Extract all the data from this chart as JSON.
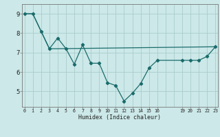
{
  "xlabel": "Humidex (Indice chaleur)",
  "bg_color": "#cce8e8",
  "grid_color": "#aacccc",
  "line_color": "#1a6b6b",
  "series1_x": [
    0,
    1,
    2,
    3,
    4,
    5,
    6,
    7,
    8,
    9,
    10,
    11,
    12,
    13,
    14,
    15,
    16,
    19,
    20,
    21,
    22,
    23
  ],
  "series1_y": [
    9.0,
    9.0,
    8.1,
    7.2,
    7.75,
    7.2,
    6.4,
    7.4,
    6.45,
    6.45,
    5.45,
    5.3,
    4.5,
    4.9,
    5.4,
    6.2,
    6.6,
    6.6,
    6.6,
    6.6,
    6.8,
    7.3
  ],
  "series2_x": [
    0,
    1,
    2,
    3,
    4,
    23
  ],
  "series2_y": [
    9.0,
    9.0,
    8.1,
    7.2,
    7.2,
    7.3
  ],
  "x_tick_positions": [
    0,
    1,
    2,
    3,
    4,
    5,
    6,
    7,
    8,
    9,
    10,
    11,
    12,
    13,
    14,
    15,
    16,
    19,
    20,
    21,
    22,
    23
  ],
  "x_tick_labels": [
    "0",
    "1",
    "2",
    "3",
    "4",
    "5",
    "6",
    "7",
    "8",
    "9",
    "10",
    "11",
    "12",
    "13",
    "14",
    "15",
    "16",
    "19",
    "20",
    "21",
    "22",
    "23"
  ],
  "y_ticks": [
    5,
    6,
    7,
    8,
    9
  ],
  "ylim": [
    4.2,
    9.5
  ],
  "xlim": [
    -0.3,
    23.3
  ]
}
